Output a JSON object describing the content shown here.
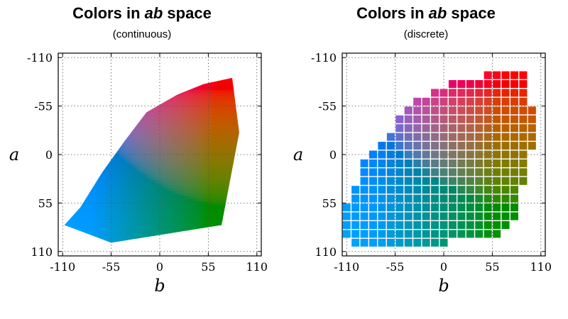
{
  "chart_data": [
    {
      "type": "area",
      "title_prefix": "Colors in ",
      "title_emph": "ab",
      "title_suffix": " space",
      "subtitle": "(continuous)",
      "xlabel": "b",
      "ylabel": "a",
      "xlim": [
        -115,
        115
      ],
      "ylim": [
        -115,
        115
      ],
      "y_inverted": true,
      "xticks": [
        -110,
        -55,
        0,
        55,
        110
      ],
      "yticks": [
        -110,
        -55,
        0,
        55,
        110
      ],
      "grid": true,
      "gamut_boundary_points": [
        [
          -108,
          80
        ],
        [
          -90,
          60
        ],
        [
          -65,
          20
        ],
        [
          -40,
          -15
        ],
        [
          -15,
          -48
        ],
        [
          20,
          -68
        ],
        [
          50,
          -80
        ],
        [
          82,
          -87
        ],
        [
          90,
          -25
        ],
        [
          70,
          80
        ],
        [
          -55,
          100
        ]
      ]
    },
    {
      "type": "heatmap",
      "title_prefix": "Colors in ",
      "title_emph": "ab",
      "title_suffix": " space",
      "subtitle": "(discrete)",
      "xlabel": "b",
      "ylabel": "a",
      "xlim": [
        -115,
        115
      ],
      "ylim": [
        -115,
        115
      ],
      "y_inverted": true,
      "xticks": [
        -110,
        -55,
        0,
        55,
        110
      ],
      "yticks": [
        -110,
        -55,
        0,
        55,
        110
      ],
      "grid": true,
      "bin_size": 10,
      "bins_a_to_b_ranges": [
        {
          "a": -90,
          "b": [
            50,
            90
          ]
        },
        {
          "a": -80,
          "b": [
            10,
            90
          ]
        },
        {
          "a": -70,
          "b": [
            -10,
            90
          ]
        },
        {
          "a": -60,
          "b": [
            -30,
            90
          ]
        },
        {
          "a": -50,
          "b": [
            -40,
            100
          ]
        },
        {
          "a": -40,
          "b": [
            -50,
            100
          ]
        },
        {
          "a": -30,
          "b": [
            -50,
            100
          ]
        },
        {
          "a": -20,
          "b": [
            -60,
            100
          ]
        },
        {
          "a": -10,
          "b": [
            -70,
            100
          ]
        },
        {
          "a": 0,
          "b": [
            -80,
            90
          ]
        },
        {
          "a": 10,
          "b": [
            -90,
            90
          ]
        },
        {
          "a": 20,
          "b": [
            -90,
            90
          ]
        },
        {
          "a": 30,
          "b": [
            -90,
            90
          ]
        },
        {
          "a": 40,
          "b": [
            -100,
            80
          ]
        },
        {
          "a": 50,
          "b": [
            -100,
            80
          ]
        },
        {
          "a": 60,
          "b": [
            -110,
            80
          ]
        },
        {
          "a": 70,
          "b": [
            -110,
            80
          ]
        },
        {
          "a": 80,
          "b": [
            -110,
            70
          ]
        },
        {
          "a": 90,
          "b": [
            -110,
            60
          ]
        },
        {
          "a": 100,
          "b": [
            -100,
            0
          ]
        }
      ]
    }
  ]
}
